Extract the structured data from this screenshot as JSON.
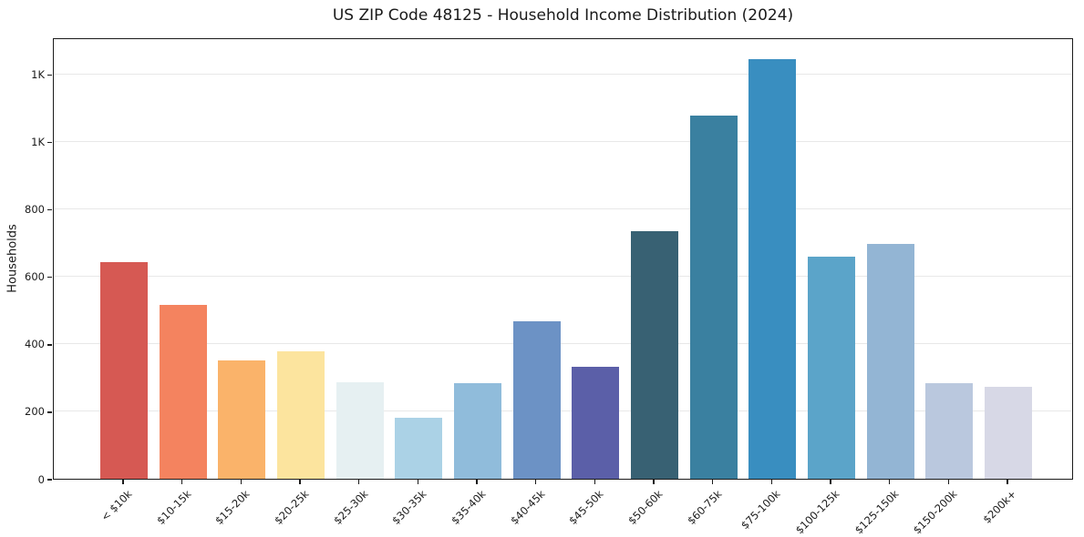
{
  "chart_data": {
    "type": "bar",
    "title": "US ZIP Code 48125 - Household Income Distribution (2024)",
    "xlabel": "",
    "ylabel": "Households",
    "categories": [
      "< $10k",
      "$10-15k",
      "$15-20k",
      "$20-25k",
      "$25-30k",
      "$30-35k",
      "$35-40k",
      "$40-45k",
      "$45-50k",
      "$50-60k",
      "$60-75k",
      "$75-100k",
      "$100-125k",
      "$125-150k",
      "$150-200k",
      "$200k+"
    ],
    "values": [
      643,
      516,
      351,
      377,
      286,
      182,
      285,
      467,
      332,
      736,
      1079,
      1244,
      659,
      697,
      285,
      272
    ],
    "bar_colors": [
      "#d65953",
      "#f4835f",
      "#fab36a",
      "#fce49e",
      "#e6f0f2",
      "#abd2e6",
      "#90bcdb",
      "#6c92c5",
      "#5b5fa8",
      "#386173",
      "#3a80a0",
      "#398ec0",
      "#5ba4c9",
      "#93b5d4",
      "#bac8de",
      "#d7d8e6"
    ],
    "ylim": [
      0,
      1310
    ],
    "yticks": [
      {
        "value": 0,
        "label": "0"
      },
      {
        "value": 200,
        "label": "200"
      },
      {
        "value": 400,
        "label": "400"
      },
      {
        "value": 600,
        "label": "600"
      },
      {
        "value": 800,
        "label": "800"
      },
      {
        "value": 1000,
        "label": "1K"
      },
      {
        "value": 1200,
        "label": "1K"
      }
    ],
    "grid": "horizontal-on",
    "legend": "none",
    "x_tick_rotation_deg": 45
  }
}
